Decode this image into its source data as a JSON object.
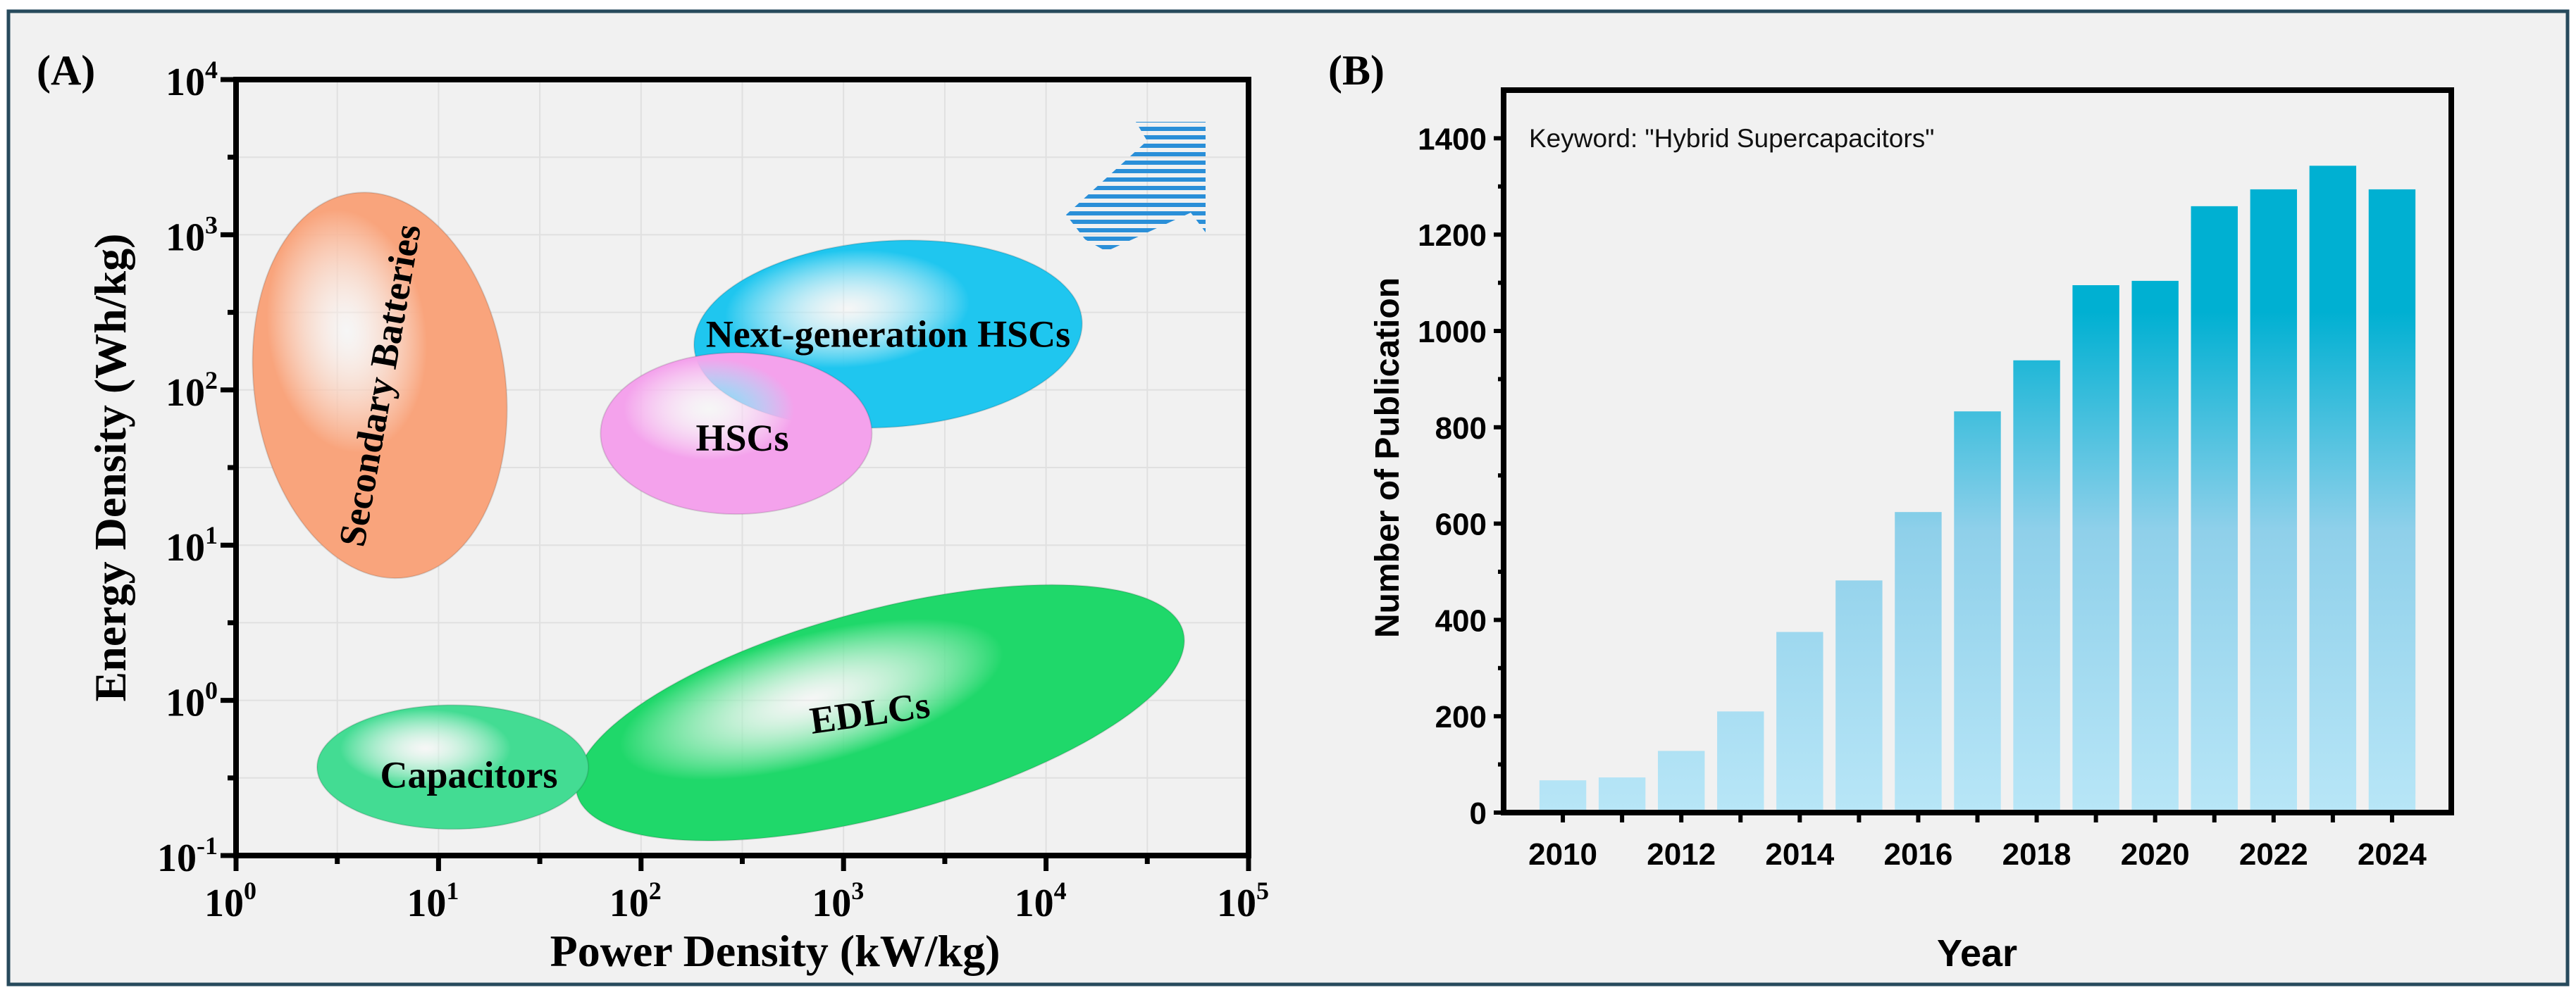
{
  "chart_data": [
    {
      "type": "scatter",
      "panel_label": "(A)",
      "title": "",
      "xlabel": "Power Density (kW/kg)",
      "ylabel": "Energy Density (Wh/kg)",
      "xscale": "log",
      "yscale": "log",
      "xlim": [
        1,
        100000
      ],
      "ylim": [
        0.1,
        10000
      ],
      "grid": true,
      "x_ticks": [
        {
          "base": "10",
          "exp": "0"
        },
        {
          "base": "10",
          "exp": "1"
        },
        {
          "base": "10",
          "exp": "2"
        },
        {
          "base": "10",
          "exp": "3"
        },
        {
          "base": "10",
          "exp": "4"
        },
        {
          "base": "10",
          "exp": "5"
        }
      ],
      "y_ticks": [
        {
          "base": "10",
          "exp": "-1"
        },
        {
          "base": "10",
          "exp": "0"
        },
        {
          "base": "10",
          "exp": "1"
        },
        {
          "base": "10",
          "exp": "2"
        },
        {
          "base": "10",
          "exp": "3"
        },
        {
          "base": "10",
          "exp": "4"
        }
      ],
      "regions": [
        {
          "name": "Secondary Batteries",
          "log_center": [
            0.71,
            2.03
          ],
          "log_extent": [
            0.62,
            1.25
          ],
          "color": "#f9a47c"
        },
        {
          "name": "Next-generation HSCs",
          "log_center": [
            3.22,
            2.36
          ],
          "log_extent": [
            0.96,
            0.6
          ],
          "color": "#1fc6ef"
        },
        {
          "name": "HSCs",
          "log_center": [
            2.47,
            1.72
          ],
          "log_extent": [
            0.67,
            0.52
          ],
          "color": "#f4a2ec"
        },
        {
          "name": "EDLCs",
          "log_center": [
            3.18,
            -0.08
          ],
          "log_extent": [
            1.55,
            0.66
          ],
          "color": "#1fd86a"
        },
        {
          "name": "Capacitors",
          "log_center": [
            1.07,
            -0.43
          ],
          "log_extent": [
            0.67,
            0.4
          ],
          "color": "#43dc93"
        }
      ],
      "annotation": "arrow pointing toward higher power and energy density",
      "arrow_color": "#2a8fd8"
    },
    {
      "type": "bar",
      "panel_label": "(B)",
      "title": "",
      "annotation": "Keyword: \"Hybrid Supercapacitors\"",
      "xlabel": "Year",
      "ylabel": "Number of Publication",
      "categories": [
        2010,
        2011,
        2012,
        2013,
        2014,
        2015,
        2016,
        2017,
        2018,
        2019,
        2020,
        2021,
        2022,
        2023,
        2024
      ],
      "values": [
        67,
        73,
        128,
        210,
        375,
        482,
        624,
        833,
        939,
        1095,
        1104,
        1259,
        1294,
        1343,
        1294
      ],
      "xlim": [
        2009,
        2025
      ],
      "ylim": [
        0,
        1500
      ],
      "x_tick_labels": [
        "2010",
        "2012",
        "2014",
        "2016",
        "2018",
        "2020",
        "2022",
        "2024"
      ],
      "y_tick_labels": [
        "0",
        "200",
        "400",
        "600",
        "800",
        "1000",
        "1200",
        "1400"
      ],
      "grid": false,
      "bar_color_top": "#00b0d2",
      "bar_color_bottom": "#b8e6f7"
    }
  ],
  "frame_color": "#274a5c",
  "background": "#f1f1f1"
}
